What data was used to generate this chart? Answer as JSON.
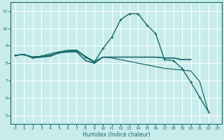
{
  "xlabel": "Humidex (Indice chaleur)",
  "ylabel": "",
  "bg_color": "#c8ecec",
  "grid_color": "#ffffff",
  "line_color": "#1a6b6b",
  "xlim": [
    -0.5,
    23.5
  ],
  "ylim": [
    4.5,
    11.5
  ],
  "xticks": [
    0,
    1,
    2,
    3,
    4,
    5,
    6,
    7,
    8,
    9,
    10,
    11,
    12,
    13,
    14,
    15,
    16,
    17,
    18,
    19,
    20,
    21,
    22,
    23
  ],
  "yticks": [
    5,
    6,
    7,
    8,
    9,
    10,
    11
  ],
  "lines": [
    {
      "x": [
        0,
        1,
        2,
        3,
        4,
        5,
        6,
        7,
        8,
        9,
        10,
        11,
        12,
        13,
        14,
        15,
        16,
        17,
        18,
        19,
        20,
        21,
        22
      ],
      "y": [
        8.45,
        8.5,
        8.35,
        8.4,
        8.45,
        8.62,
        8.68,
        8.72,
        8.35,
        8.05,
        8.85,
        9.5,
        10.5,
        10.85,
        10.85,
        10.2,
        9.7,
        8.2,
        8.15,
        7.7,
        6.9,
        6.05,
        5.2
      ],
      "marker": true,
      "linewidth": 1.0
    },
    {
      "x": [
        0,
        1,
        2,
        3,
        4,
        5,
        6,
        7,
        8,
        9,
        10,
        11,
        12,
        13,
        14,
        15,
        16,
        17,
        18,
        19,
        20
      ],
      "y": [
        8.45,
        8.5,
        8.35,
        8.4,
        8.45,
        8.62,
        8.68,
        8.72,
        8.35,
        8.05,
        8.35,
        8.35,
        8.35,
        8.35,
        8.35,
        8.35,
        8.35,
        8.3,
        8.3,
        8.2,
        8.2
      ],
      "marker": false,
      "linewidth": 0.9
    },
    {
      "x": [
        0,
        1,
        2,
        3,
        4,
        5,
        6,
        7,
        8,
        9,
        10,
        11,
        12,
        13,
        14,
        15,
        16,
        17,
        18,
        19,
        20
      ],
      "y": [
        8.45,
        8.5,
        8.35,
        8.4,
        8.55,
        8.65,
        8.75,
        8.75,
        8.4,
        8.1,
        8.35,
        8.35,
        8.35,
        8.35,
        8.35,
        8.35,
        8.35,
        8.3,
        8.3,
        8.2,
        8.2
      ],
      "marker": false,
      "linewidth": 0.9
    },
    {
      "x": [
        0,
        1,
        2,
        3,
        4,
        5,
        6,
        7,
        8,
        9,
        10,
        11,
        12,
        13,
        14,
        15,
        16,
        17,
        18,
        19,
        20,
        21,
        22
      ],
      "y": [
        8.45,
        8.5,
        8.3,
        8.35,
        8.4,
        8.6,
        8.65,
        8.65,
        8.15,
        8.0,
        8.35,
        8.3,
        8.2,
        8.1,
        8.0,
        7.9,
        7.8,
        7.7,
        7.65,
        7.6,
        7.55,
        6.95,
        5.2
      ],
      "marker": false,
      "linewidth": 0.9
    },
    {
      "x": [
        0,
        1,
        2,
        3,
        4,
        5,
        6,
        7,
        8,
        9,
        10,
        11,
        12,
        13,
        14,
        15,
        16,
        17,
        18,
        19,
        20
      ],
      "y": [
        8.45,
        8.5,
        8.3,
        8.35,
        8.4,
        8.6,
        8.65,
        8.65,
        8.15,
        8.0,
        8.35,
        8.35,
        8.35,
        8.35,
        8.35,
        8.35,
        8.35,
        8.3,
        8.3,
        8.2,
        8.2
      ],
      "marker": false,
      "linewidth": 0.9
    }
  ]
}
